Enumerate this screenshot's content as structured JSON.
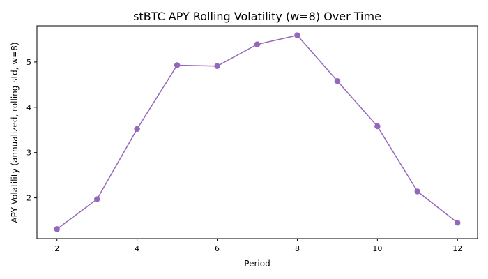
{
  "chart_data": {
    "type": "line",
    "title": "stBTC APY Rolling Volatility (w=8) Over Time",
    "xlabel": "Period",
    "ylabel": "APY Volatility (annualized, rolling std, w=8)",
    "x": [
      2,
      3,
      4,
      5,
      6,
      7,
      8,
      9,
      10,
      11,
      12
    ],
    "series": [
      {
        "values": [
          1.31,
          1.97,
          3.52,
          4.93,
          4.91,
          5.39,
          5.59,
          4.58,
          3.58,
          2.14,
          1.45
        ]
      }
    ],
    "xlim": [
      1.5,
      12.5
    ],
    "ylim": [
      1.1,
      5.8
    ],
    "xticks": [
      2,
      4,
      6,
      8,
      10,
      12
    ],
    "yticks": [
      2,
      3,
      4,
      5
    ],
    "grid": false,
    "line_color": "#9467bd"
  }
}
